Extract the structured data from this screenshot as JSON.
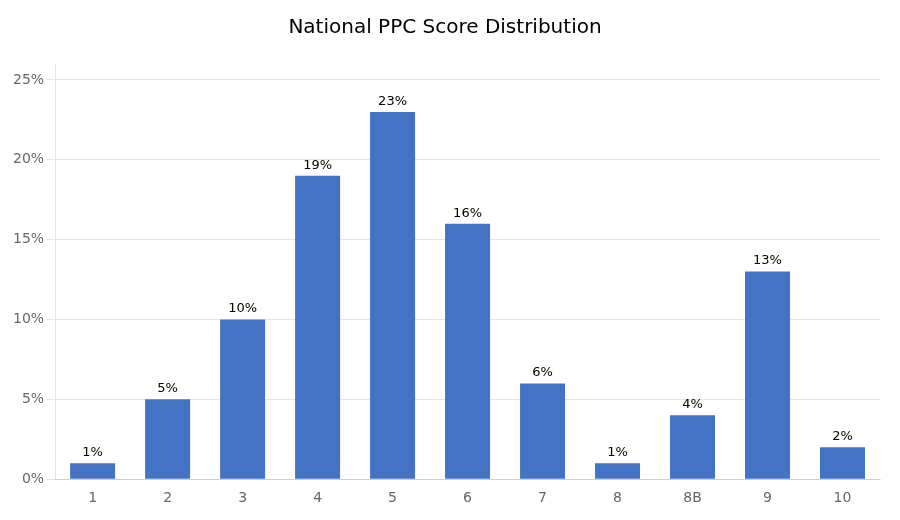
{
  "chart_data": {
    "type": "bar",
    "title": "National PPC Score Distribution",
    "categories": [
      "1",
      "2",
      "3",
      "4",
      "5",
      "6",
      "7",
      "8",
      "8B",
      "9",
      "10"
    ],
    "values": [
      1,
      5,
      10,
      19,
      23,
      16,
      6,
      1,
      4,
      13,
      2
    ],
    "value_labels": [
      "1%",
      "5%",
      "10%",
      "19%",
      "23%",
      "16%",
      "6%",
      "1%",
      "4%",
      "13%",
      "2%"
    ],
    "data_labels": true,
    "color": "#4472C4",
    "ylim": [
      0,
      26
    ],
    "yticks": [
      {
        "value": 0,
        "label": "0%"
      },
      {
        "value": 5,
        "label": "5%"
      },
      {
        "value": 10,
        "label": "10%"
      },
      {
        "value": 15,
        "label": "15%"
      },
      {
        "value": 20,
        "label": "20%"
      },
      {
        "value": 25,
        "label": "25%"
      }
    ],
    "grid": true
  }
}
